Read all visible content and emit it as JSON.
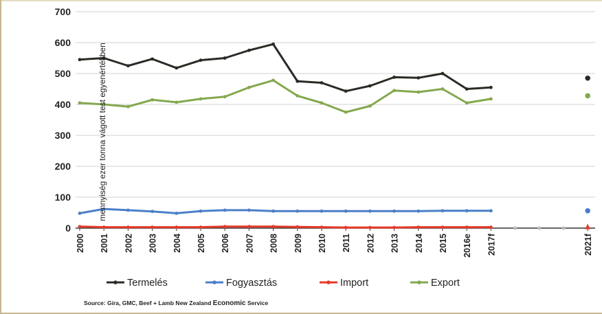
{
  "chart_data": {
    "type": "line",
    "ylabel": "mennyiség ezer tonna vágott test egyenértékben",
    "xlabel": "",
    "ylim": [
      0,
      700
    ],
    "yticks": [
      0,
      100,
      200,
      300,
      400,
      500,
      600,
      700
    ],
    "categories": [
      "2000",
      "2001",
      "2002",
      "2003",
      "2004",
      "2005",
      "2006",
      "2007",
      "2008",
      "2009",
      "2010",
      "2011",
      "2012",
      "2013",
      "2014",
      "2015",
      "2016e",
      "2017f",
      "",
      "",
      "",
      "2021f"
    ],
    "grid": "horizontal",
    "legend_position": "bottom",
    "series": [
      {
        "name": "Termelés",
        "color": "#2b2b25",
        "values": [
          545,
          550,
          525,
          547,
          518,
          543,
          550,
          575,
          595,
          475,
          470,
          443,
          460,
          488,
          486,
          500,
          450,
          455,
          null,
          null,
          null,
          485
        ]
      },
      {
        "name": "Fogyasztás",
        "color": "#4a7fc8",
        "values": [
          48,
          62,
          58,
          54,
          48,
          55,
          58,
          58,
          55,
          55,
          55,
          55,
          55,
          55,
          55,
          56,
          56,
          56,
          null,
          null,
          null,
          56
        ]
      },
      {
        "name": "Import",
        "color": "#e53a2a",
        "values": [
          5,
          3,
          3,
          3,
          3,
          3,
          5,
          5,
          5,
          4,
          3,
          2,
          2,
          2,
          3,
          3,
          3,
          3,
          null,
          null,
          null,
          3
        ]
      },
      {
        "name": "Export",
        "color": "#84a84e",
        "values": [
          405,
          400,
          393,
          415,
          407,
          418,
          425,
          455,
          478,
          428,
          405,
          375,
          395,
          445,
          440,
          450,
          405,
          418,
          null,
          null,
          null,
          428
        ]
      }
    ],
    "placeholder_points": {
      "color": "#bbbbbb",
      "values": [
        null,
        null,
        null,
        null,
        null,
        null,
        null,
        null,
        null,
        null,
        null,
        null,
        null,
        null,
        null,
        null,
        null,
        null,
        0,
        0,
        0,
        null
      ]
    }
  },
  "source": {
    "text": "Source: Gira, GMC, Beef + Lamb New Zealand",
    "emphasis": "Economic",
    "suffix": "Service"
  }
}
